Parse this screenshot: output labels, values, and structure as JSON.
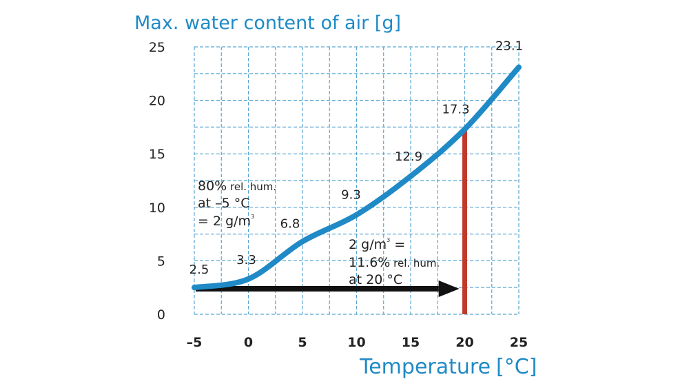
{
  "chart_data": {
    "type": "line",
    "title": "Max. water content of air  [g]",
    "xlabel": "Temperature",
    "xlabel_unit": "[°C]",
    "x": [
      -5,
      0,
      5,
      10,
      15,
      20,
      25
    ],
    "series": [
      {
        "values": [
          2.5,
          3.3,
          6.8,
          9.3,
          12.9,
          17.3,
          23.1
        ],
        "color": "#1f8ac6"
      }
    ],
    "xlim": [
      -5,
      25
    ],
    "ylim": [
      0,
      25
    ],
    "xticks": [
      "–5",
      "0",
      "5",
      "10",
      "15",
      "20",
      "25"
    ],
    "yticks": [
      "0",
      "5",
      "10",
      "15",
      "20",
      "25"
    ],
    "grid": true,
    "grid_style": "dashed",
    "grid_color": "#5aa6d2",
    "data_labels": [
      "2.5",
      "3.3",
      "6.8",
      "9.3",
      "12.9",
      "17.3",
      "23.1"
    ],
    "annotations": {
      "left_note": {
        "line1_a": "80%",
        "line1_b": " rel. hum.",
        "line2": "at –5 °C",
        "line3_a": "= 2 g/m",
        "line3_sup": "3"
      },
      "right_note": {
        "line1_a": "2 g/m",
        "line1_sup": "3",
        "line1_b": " =",
        "line2_a": "11.6%",
        "line2_b": " rel. hum.",
        "line3": "at 20 °C"
      }
    },
    "vertical_marker": {
      "x": 20,
      "color": "#c0392b"
    },
    "arrow": {
      "from_x": -5,
      "to_x": 19.5,
      "y": 2,
      "color": "#111111"
    }
  }
}
